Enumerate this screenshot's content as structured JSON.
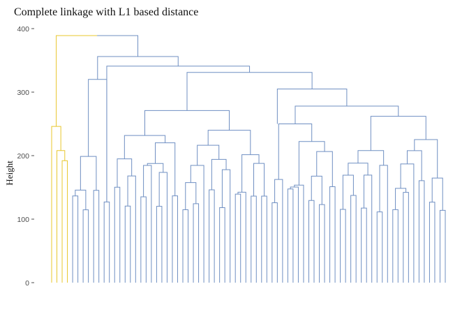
{
  "chart_data": {
    "type": "dendrogram",
    "title": "Complete linkage with L1 based distance",
    "xlabel": "",
    "ylabel": "Height",
    "ylim": [
      0,
      400
    ],
    "yticks": [
      0,
      100,
      200,
      300,
      400
    ],
    "grid": false,
    "leaf_count": 76,
    "cluster_colors": [
      "#e8c72e",
      "#6f8fc2"
    ],
    "merges": [
      {
        "left": 0,
        "right": 1,
        "height": 246,
        "leaves": 0,
        "color": 0
      },
      {
        "left": 3,
        "right": 4,
        "height": 192,
        "color": 0
      },
      {
        "left": 2,
        "right": 5,
        "height": 208,
        "color": 0
      },
      {
        "left": 0,
        "right": 6,
        "height": 246,
        "color": 0
      },
      {
        "left": 7,
        "right": 8,
        "height": 220,
        "color": 1
      },
      {
        "left": 9,
        "right": 10,
        "height": 138,
        "color": 1
      },
      {
        "left": 11,
        "right": 12,
        "height": 200,
        "color": 1
      },
      {
        "left": 13,
        "right": 14,
        "height": 212,
        "color": 1
      },
      {
        "left": 15,
        "right": 16,
        "height": 222,
        "color": 1
      }
    ],
    "major_heights": [
      389,
      356,
      341,
      331,
      305,
      278,
      271,
      262,
      250,
      240,
      237,
      234,
      229,
      226,
      221,
      219,
      217,
      215,
      214,
      212,
      210,
      207,
      205,
      203,
      202,
      200,
      198,
      196,
      195,
      193,
      190,
      188,
      186,
      183,
      181,
      179,
      177,
      175,
      173,
      171,
      168,
      166,
      163,
      160,
      157,
      155,
      152,
      149,
      146,
      143,
      140,
      136,
      133,
      130,
      126,
      118
    ]
  }
}
